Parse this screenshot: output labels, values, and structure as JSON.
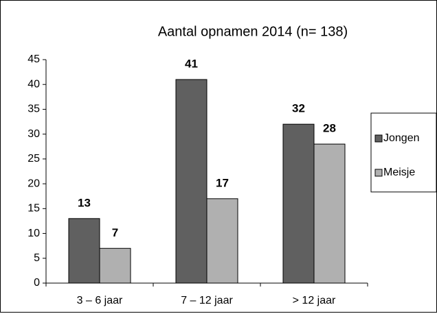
{
  "chart_data": {
    "type": "bar",
    "title": "Aantal opnamen 2014 (n= 138)",
    "categories": [
      "3 – 6 jaar",
      "7 – 12 jaar",
      "> 12 jaar"
    ],
    "series": [
      {
        "name": "Jongen",
        "color": "#606060",
        "values": [
          13,
          41,
          32
        ]
      },
      {
        "name": "Meisje",
        "color": "#b0b0b0",
        "values": [
          7,
          17,
          28
        ]
      }
    ],
    "ylim": [
      0,
      45
    ],
    "yticks": [
      0,
      5,
      10,
      15,
      20,
      25,
      30,
      35,
      40,
      45
    ],
    "legend": "right"
  }
}
